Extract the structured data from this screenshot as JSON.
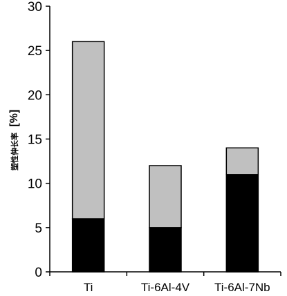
{
  "chart_data": {
    "type": "bar",
    "stacked": true,
    "categories": [
      "Ti",
      "Ti-6Al-4V",
      "Ti-6Al-7Nb"
    ],
    "series": [
      {
        "values": [
          6,
          5,
          11
        ],
        "color": "#000000"
      },
      {
        "values": [
          20,
          7,
          3
        ],
        "color": "#c0c0c0"
      }
    ],
    "ylabel_text": "塑性伸长率",
    "ylabel_unit": "[%]",
    "ylim": [
      0,
      30
    ],
    "yticks": [
      0,
      5,
      10,
      15,
      20,
      25,
      30
    ],
    "grid": false,
    "legend": "none"
  }
}
